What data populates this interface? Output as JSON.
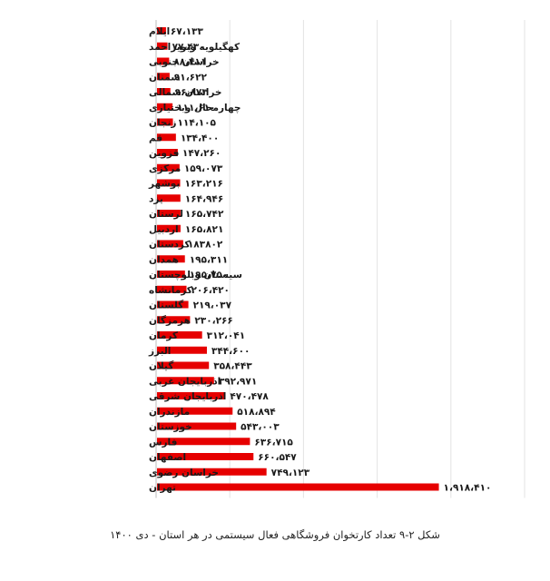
{
  "chart_data": {
    "type": "bar",
    "orientation": "horizontal",
    "categories": [
      "ایلام",
      "کهگیلویه وبویراحمد",
      "خراسان جنوبی",
      "سمنان",
      "خراسان شمالی",
      "چهارمحال وبختیاری",
      "زنجان",
      "قم",
      "قزوین",
      "مرکزی",
      "بوشهر",
      "یزد",
      "لرستان",
      "اردبیل",
      "کردستان",
      "همدان",
      "سیستان وبلوچستان",
      "کرمانشاه",
      "گلستان",
      "هرمزگان",
      "کرمان",
      "البرز",
      "گیلان",
      "اذربایجان غربی",
      "اذربایجان شرقی",
      "مازندران",
      "خوزستان",
      "فارس",
      "اصفهان",
      "خراسان رضوی",
      "تهران"
    ],
    "values": [
      67133,
      77430,
      88411,
      91622,
      96873,
      111610,
      114105,
      134400,
      147260,
      159073,
      163216,
      164946,
      165742,
      165821,
      183802,
      195311,
      195750,
      206420,
      219037,
      230266,
      312041,
      344600,
      358443,
      392971,
      470478,
      518894,
      543003,
      636715,
      660547,
      749123,
      1918410
    ],
    "value_labels": [
      "۶۷،۱۳۳",
      "۷۷،۴۳۰",
      "۸۸،۴۱۱",
      "۹۱،۶۲۲",
      "۹۶،۸۷۳",
      "۱۱۱،۶۱۰",
      "۱۱۴،۱۰۵",
      "۱۳۴،۴۰۰",
      "۱۴۷،۲۶۰",
      "۱۵۹،۰۷۳",
      "۱۶۳،۲۱۶",
      "۱۶۴،۹۴۶",
      "۱۶۵،۷۴۲",
      "۱۶۵،۸۲۱",
      "۱۸۳۸۰۲",
      "۱۹۵،۳۱۱",
      "۱۹۵،۷۵۰",
      "۲۰۶،۴۲۰",
      "۲۱۹،۰۳۷",
      "۲۳۰،۲۶۶",
      "۳۱۲،۰۴۱",
      "۳۴۴،۶۰۰",
      "۳۵۸،۴۴۳",
      "۳۹۲،۹۷۱",
      "۴۷۰،۴۷۸",
      "۵۱۸،۸۹۴",
      "۵۴۳،۰۰۳",
      "۶۳۶،۷۱۵",
      "۶۶۰،۵۴۷",
      "۷۴۹،۱۲۳",
      "۱،۹۱۸،۴۱۰"
    ],
    "bar_color": "#e60000",
    "xlim": [
      0,
      2500000
    ],
    "grid": true,
    "legend": "none",
    "title": "",
    "xlabel": "",
    "ylabel": ""
  },
  "caption": "شکل ۲-۹ تعداد کارتخوان فروشگاهی فعال سیستمی در هر استان - دی ۱۴۰۰"
}
